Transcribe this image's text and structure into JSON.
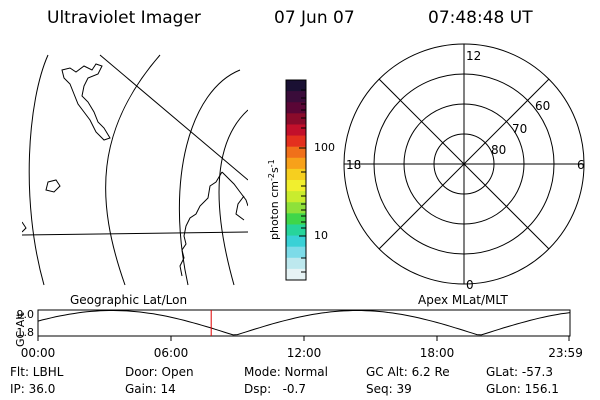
{
  "header": {
    "instrument": "Ultraviolet Imager",
    "date": "07 Jun 07",
    "time": "07:48:48 UT"
  },
  "geo_panel": {
    "label": "Geographic Lat/Lon"
  },
  "colorbar": {
    "unit": "photon cm",
    "unit_exp1": "-2",
    "unit_s": "s",
    "unit_exp2": "-1",
    "tick_labels": [
      "100",
      "10"
    ],
    "colors": [
      "#1a1033",
      "#3a0c3a",
      "#5a0636",
      "#8a0b2b",
      "#c2102b",
      "#e3301e",
      "#f0701a",
      "#f7a11a",
      "#f6cf1f",
      "#f1ef2e",
      "#c9ec2e",
      "#8ee13a",
      "#3fd64a",
      "#27d49b",
      "#39d1d6",
      "#7ddbe8",
      "#bde8ee",
      "#e6f3f5"
    ]
  },
  "polar_panel": {
    "mlt_labels": {
      "top": "12",
      "right": "6",
      "bottom": "0",
      "left": "18"
    },
    "lat_labels": [
      "60",
      "70",
      "80"
    ]
  },
  "apex_label": "Apex MLat/MLT",
  "altitude_plot": {
    "ylabel": "GC Alt",
    "ymax_label": "9.0",
    "ymin_label": "1.8",
    "x_tick_labels": [
      "00:00",
      "06:00",
      "12:00",
      "18:00",
      "23:59"
    ],
    "current_time_hours": 7.8133,
    "marker_color": "#e00000"
  },
  "info": {
    "filter": "Flt: LBHL",
    "door": "Door: Open",
    "mode": "Mode: Normal",
    "gc_alt": "GC Alt: 6.2 Re",
    "glat": "GLat: -57.3",
    "ip": "IP: 36.0",
    "gain": "Gain: 14",
    "dsp": "Dsp:   -0.7",
    "seq": "Seq: 39",
    "glon": "GLon: 156.1"
  }
}
